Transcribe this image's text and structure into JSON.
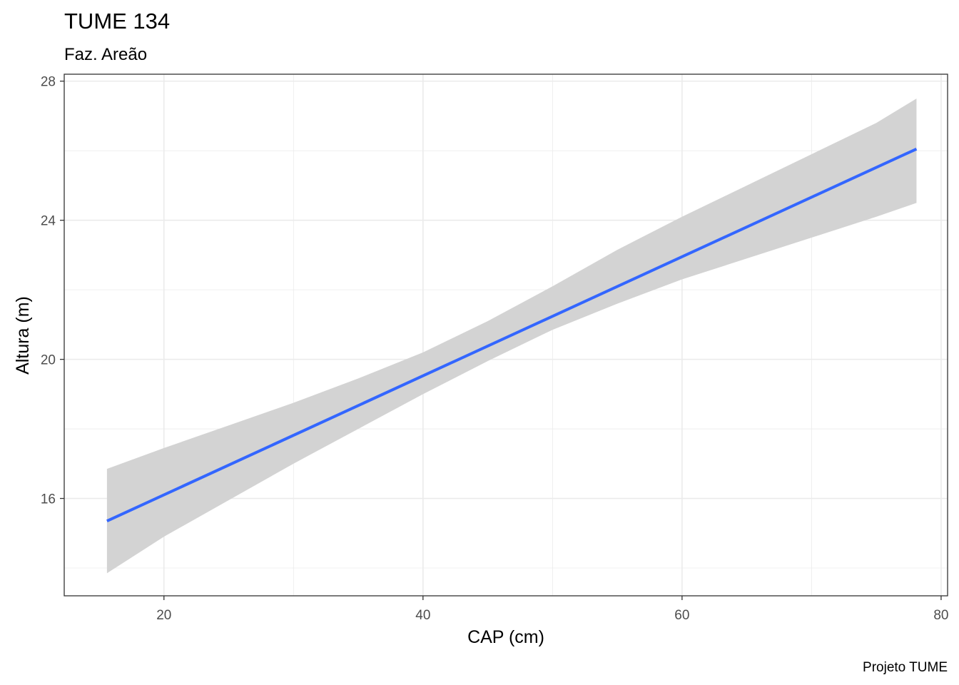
{
  "chart_data": {
    "type": "line",
    "title": "TUME 134",
    "subtitle": "Faz. Areão",
    "xlabel": "CAP (cm)",
    "ylabel": "Altura (m)",
    "caption": "Projeto TUME",
    "xlim": [
      12.3,
      80.5
    ],
    "ylim": [
      13.2,
      28.2
    ],
    "x_ticks": [
      20,
      40,
      60,
      80
    ],
    "y_ticks": [
      16,
      20,
      24,
      28
    ],
    "x_minor_ticks": [
      30,
      50,
      70
    ],
    "y_minor_ticks": [
      14,
      18,
      22,
      26
    ],
    "x_tick_labels": [
      "20",
      "40",
      "60",
      "80"
    ],
    "y_tick_labels": [
      "16",
      "20",
      "24",
      "28"
    ],
    "grid": true,
    "series": [
      {
        "type": "line",
        "color": "#3366ff",
        "x": [
          15.6,
          78.1
        ],
        "y": [
          15.35,
          26.05
        ]
      },
      {
        "type": "ribbon",
        "color": "#d3d3d3",
        "x": [
          15.6,
          20,
          25,
          30,
          35,
          40,
          45,
          50,
          55,
          60,
          65,
          70,
          75,
          78.1
        ],
        "lower": [
          13.85,
          14.9,
          15.95,
          17.0,
          18.0,
          19.0,
          19.95,
          20.85,
          21.6,
          22.3,
          22.9,
          23.5,
          24.1,
          24.5
        ],
        "upper": [
          16.85,
          17.45,
          18.1,
          18.75,
          19.45,
          20.2,
          21.1,
          22.1,
          23.15,
          24.1,
          25.0,
          25.9,
          26.8,
          27.5
        ]
      }
    ],
    "colors": {
      "line": "#3366ff",
      "ribbon": "#d3d3d3",
      "grid": "#ebebeb",
      "panel_border": "#333333",
      "tick_text": "#4d4d4d"
    }
  }
}
